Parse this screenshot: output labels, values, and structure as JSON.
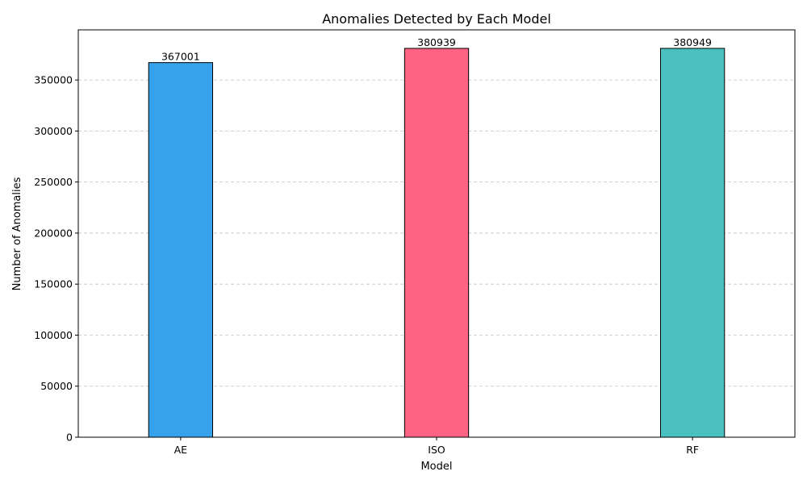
{
  "chart_data": {
    "type": "bar",
    "title": "Anomalies Detected by Each Model",
    "xlabel": "Model",
    "ylabel": "Number of Anomalies",
    "categories": [
      "AE",
      "ISO",
      "RF"
    ],
    "values": [
      367001,
      380939,
      380949
    ],
    "colors": [
      "#36a2eb",
      "#ff6384",
      "#4bc0c0"
    ],
    "ylim": [
      0,
      399097
    ],
    "yticks": [
      0,
      50000,
      100000,
      150000,
      200000,
      250000,
      300000,
      350000
    ],
    "grid": "y-dashed",
    "legend": "none"
  }
}
